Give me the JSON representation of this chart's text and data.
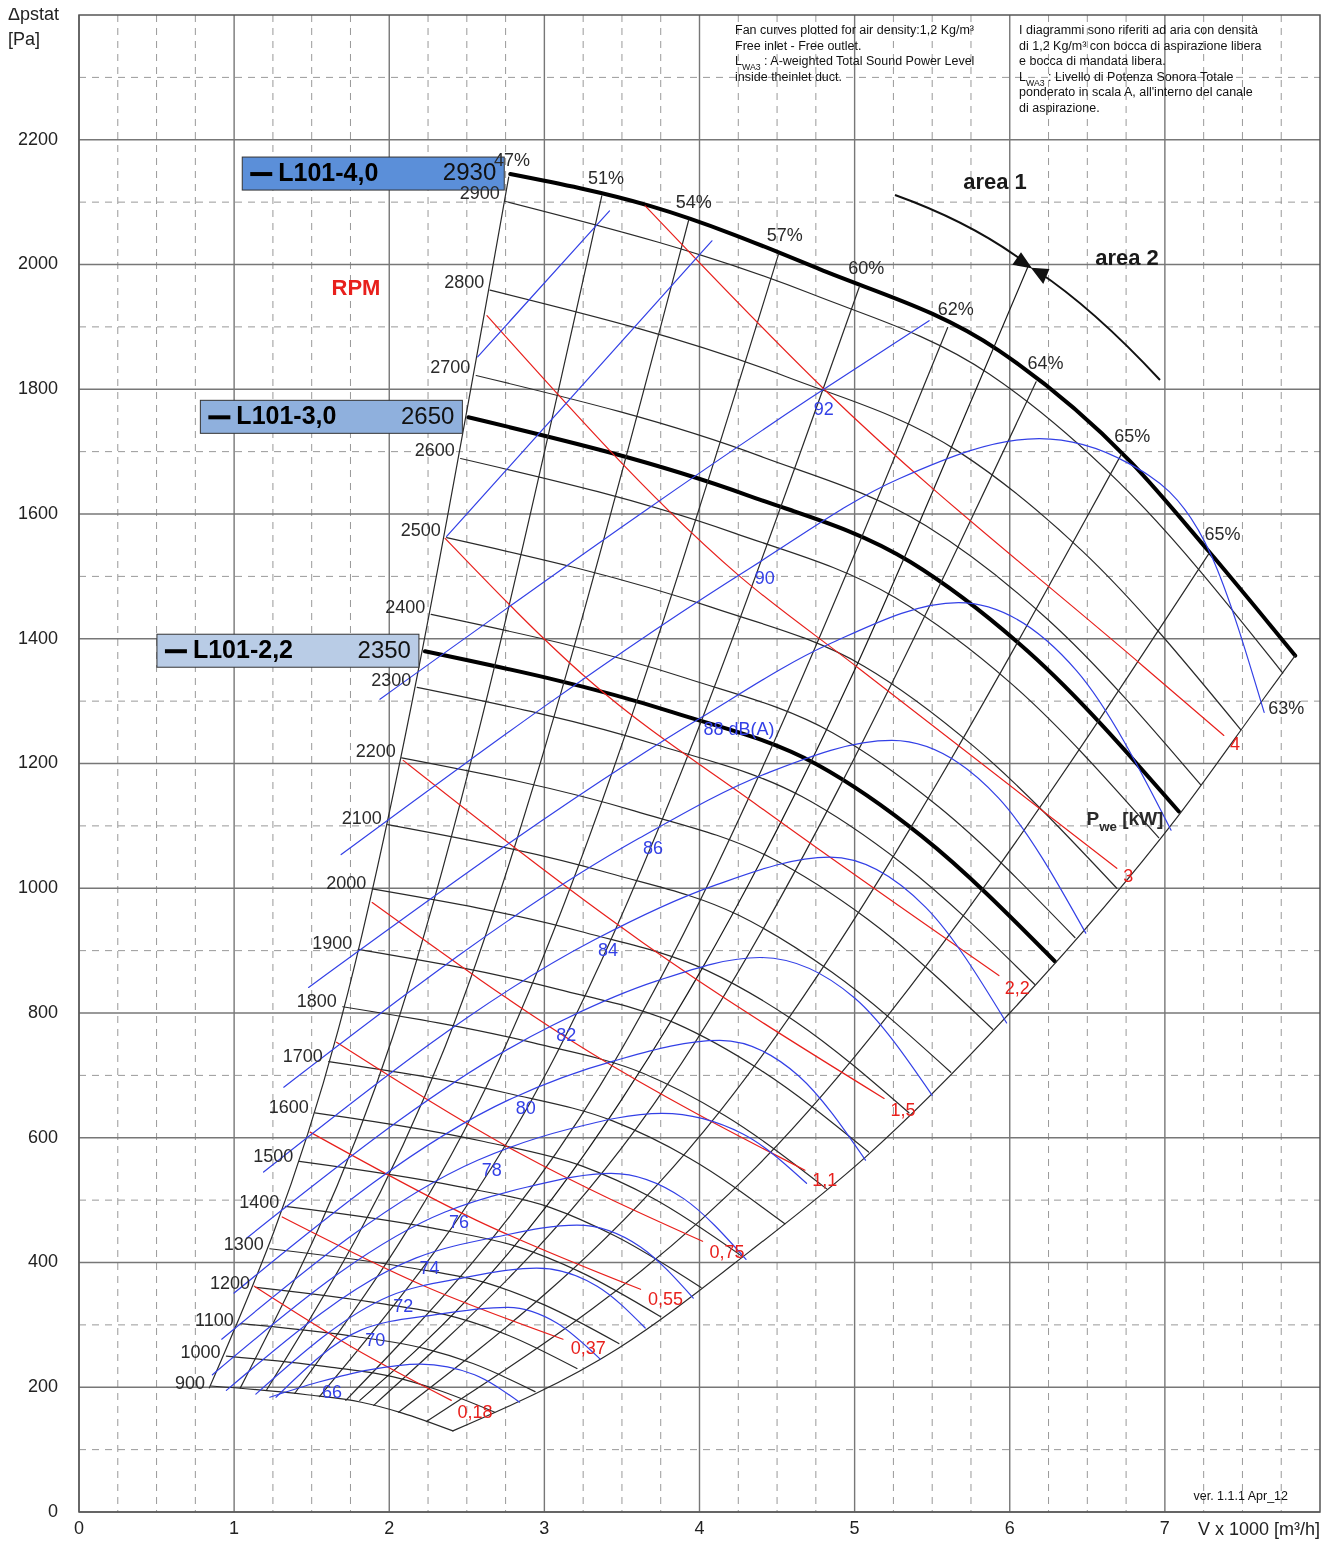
{
  "chart_data": {
    "type": "line",
    "ylabel": "Δpstat\n[Pa]",
    "xlabel": "V x 1000 [m³/h]",
    "xlim": [
      0,
      8
    ],
    "ylim": [
      0,
      2400
    ],
    "xticks": [
      0,
      {
        "value": 0.25,
        "label": null
      },
      {
        "value": 0.5,
        "label": null
      },
      {
        "value": 0.75,
        "label": null
      },
      1,
      {
        "value": 1.25,
        "label": null
      },
      {
        "value": 1.5,
        "label": null
      },
      {
        "value": 1.75,
        "label": null
      },
      2,
      {
        "value": 2.25,
        "label": null
      },
      {
        "value": 2.5,
        "label": null
      },
      {
        "value": 2.75,
        "label": null
      },
      3,
      {
        "value": 3.25,
        "label": null
      },
      {
        "value": 3.5,
        "label": null
      },
      {
        "value": 3.75,
        "label": null
      },
      4,
      {
        "value": 4.25,
        "label": null
      },
      {
        "value": 4.5,
        "label": null
      },
      {
        "value": 4.75,
        "label": null
      },
      5,
      {
        "value": 5.25,
        "label": null
      },
      {
        "value": 5.5,
        "label": null
      },
      {
        "value": 5.75,
        "label": null
      },
      6,
      {
        "value": 6.25,
        "label": null
      },
      {
        "value": 6.5,
        "label": null
      },
      {
        "value": 6.75,
        "label": null
      },
      7,
      {
        "value": 7.25,
        "label": null
      },
      {
        "value": 7.5,
        "label": null
      },
      {
        "value": 7.75,
        "label": null
      }
    ],
    "yticks": [
      0,
      {
        "value": 100,
        "label": null
      },
      200,
      {
        "value": 300,
        "label": null
      },
      400,
      {
        "value": 500,
        "label": null
      },
      600,
      {
        "value": 700,
        "label": null
      },
      800,
      {
        "value": 900,
        "label": null
      },
      1000,
      {
        "value": 1100,
        "label": null
      },
      1200,
      {
        "value": 1300,
        "label": null
      },
      1400,
      {
        "value": 1500,
        "label": null
      },
      1600,
      {
        "value": 1700,
        "label": null
      },
      1800,
      {
        "value": 1900,
        "label": null
      },
      2000,
      {
        "value": 2100,
        "label": null
      },
      2200,
      {
        "value": 2300,
        "label": null
      }
    ],
    "grid": true,
    "marker": "none",
    "line_style": "solid",
    "legend": "left",
    "series": [
      {
        "color": "#2a2a2a",
        "x": [
          2.75,
          4.72,
          5.87,
          6.7,
          7.76
        ],
        "values": [
          2101,
          1953,
          1824,
          1652,
          1345
        ]
      },
      {
        "color": "#2a2a2a",
        "x": [
          2.65,
          4.56,
          5.67,
          6.47,
          7.49
        ],
        "values": [
          1959,
          1820,
          1700,
          1540,
          1254
        ]
      },
      {
        "color": "#2a2a2a",
        "x": [
          2.56,
          4.4,
          5.46,
          6.24,
          7.23
        ],
        "values": [
          1822,
          1692,
          1581,
          1432,
          1166
        ]
      },
      {
        "color": "#2a2a2a",
        "x": [
          2.46,
          4.23,
          5.26,
          6.01,
          6.96
        ],
        "values": [
          1689,
          1569,
          1466,
          1328,
          1081
        ]
      },
      {
        "color": "#2a2a2a",
        "x": [
          2.37,
          4.07,
          5.06,
          5.77,
          6.69
        ],
        "values": [
          1562,
          1451,
          1356,
          1227,
          1000
        ]
      },
      {
        "color": "#2a2a2a",
        "x": [
          2.27,
          3.91,
          4.86,
          5.54,
          6.42
        ],
        "values": [
          1439,
          1337,
          1249,
          1131,
          921
        ]
      },
      {
        "color": "#2a2a2a",
        "x": [
          2.18,
          3.75,
          4.66,
          5.31,
          6.16
        ],
        "values": [
          1322,
          1228,
          1147,
          1039,
          846
        ]
      },
      {
        "color": "#2a2a2a",
        "x": [
          2.08,
          3.58,
          4.45,
          5.08,
          5.89
        ],
        "values": [
          1209,
          1124,
          1050,
          951,
          774
        ]
      },
      {
        "color": "#2a2a2a",
        "x": [
          1.99,
          3.42,
          4.25,
          4.85,
          5.62
        ],
        "values": [
          1102,
          1024,
          957,
          866,
          705
        ]
      },
      {
        "color": "#2a2a2a",
        "x": [
          1.89,
          3.26,
          4.05,
          4.62,
          5.35
        ],
        "values": [
          999,
          929,
          868,
          786,
          640
        ]
      },
      {
        "color": "#2a2a2a",
        "x": [
          1.8,
          3.09,
          3.85,
          4.39,
          5.09
        ],
        "values": [
          902,
          838,
          783,
          709,
          577
        ]
      },
      {
        "color": "#2a2a2a",
        "x": [
          1.7,
          2.93,
          3.64,
          4.16,
          4.82
        ],
        "values": [
          810,
          752,
          703,
          636,
          518
        ]
      },
      {
        "color": "#2a2a2a",
        "x": [
          1.61,
          2.77,
          3.44,
          3.93,
          4.55
        ],
        "values": [
          722,
          671,
          627,
          568,
          462
        ]
      },
      {
        "color": "#2a2a2a",
        "x": [
          1.52,
          2.61,
          3.24,
          3.7,
          4.28
        ],
        "values": [
          640,
          594,
          555,
          503,
          409
        ]
      },
      {
        "color": "#2a2a2a",
        "x": [
          1.42,
          2.44,
          3.04,
          3.46,
          4.01
        ],
        "values": [
          562,
          522,
          488,
          442,
          360
        ]
      },
      {
        "color": "#2a2a2a",
        "x": [
          1.33,
          2.28,
          2.83,
          3.23,
          3.75
        ],
        "values": [
          490,
          455,
          425,
          385,
          313
        ]
      },
      {
        "color": "#2a2a2a",
        "x": [
          1.23,
          2.12,
          2.63,
          3.0,
          3.48
        ],
        "values": [
          422,
          392,
          367,
          332,
          270
        ]
      },
      {
        "color": "#2a2a2a",
        "x": [
          1.14,
          1.95,
          2.43,
          2.77,
          3.21
        ],
        "values": [
          360,
          334,
          312,
          283,
          230
        ]
      },
      {
        "color": "#2a2a2a",
        "x": [
          1.04,
          1.79,
          2.23,
          2.54,
          2.94
        ],
        "values": [
          302,
          281,
          262,
          238,
          193
        ]
      },
      {
        "color": "#2a2a2a",
        "x": [
          0.95,
          1.63,
          2.02,
          2.31,
          2.68
        ],
        "values": [
          250,
          232,
          217,
          196,
          160
        ]
      },
      {
        "color": "#2a2a2a",
        "x": [
          0.85,
          1.47,
          1.82,
          2.08,
          2.41
        ],
        "values": [
          202,
          188,
          176,
          159,
          130
        ]
      },
      {
        "name": "L101-4,0",
        "color": "#000000",
        "x": [
          2.78,
          3.68,
          4.77,
          5.93,
          6.77,
          7.28,
          7.84
        ],
        "values": [
          2145,
          2094,
          1993,
          1862,
          1686,
          1541,
          1373
        ]
      },
      {
        "name": "L101-3,0",
        "color": "#000000",
        "x": [
          2.51,
          4.31,
          5.36,
          6.12,
          7.09
        ],
        "values": [
          1755,
          1630,
          1523,
          1379,
          1123
        ]
      },
      {
        "name": "L101-2,2",
        "color": "#000000",
        "x": [
          2.23,
          3.83,
          4.76,
          5.43,
          6.29
        ],
        "values": [
          1380,
          1282,
          1198,
          1084,
          883
        ]
      },
      {
        "color": "#2a2a2a",
        "x": [
          0.84,
          1.67,
          2.77
        ],
        "values": [
          199,
          772,
          2140
        ]
      },
      {
        "color": "#2a2a2a",
        "x": [
          1.04,
          2.02,
          3.37
        ],
        "values": [
          199,
          760,
          2110
        ]
      },
      {
        "color": "#2a2a2a",
        "x": [
          1.21,
          2.36,
          3.93
        ],
        "values": [
          196,
          746,
          2071
        ]
      },
      {
        "color": "#2a2a2a",
        "x": [
          1.39,
          2.71,
          4.51
        ],
        "values": [
          190,
          726,
          2017
        ]
      },
      {
        "color": "#2a2a2a",
        "x": [
          1.55,
          3.02,
          5.03
        ],
        "values": [
          185,
          707,
          1964
        ]
      },
      {
        "color": "#2a2a2a",
        "x": [
          1.72,
          3.36,
          5.6
        ],
        "values": [
          179,
          684,
          1899
        ]
      },
      {
        "color": "#2a2a2a",
        "x": [
          1.9,
          3.7,
          6.17
        ],
        "values": [
          171,
          652,
          1812
        ]
      },
      {
        "color": "#2a2a2a",
        "x": [
          2.06,
          4.03,
          6.72
        ],
        "values": [
          160,
          611,
          1696
        ]
      },
      {
        "color": "#2a2a2a",
        "x": [
          2.24,
          4.37,
          7.29
        ],
        "values": [
          145,
          554,
          1539
        ]
      },
      {
        "color": "#2a2a2a",
        "x": [
          2.41,
          3.48,
          4.32,
          5.07,
          6.0,
          7.08,
          7.64,
          7.84
        ],
        "values": [
          130,
          263,
          417,
          569,
          800,
          1114,
          1305,
          1373
        ]
      },
      {
        "color": "#1a1a1a",
        "x": [
          1.81,
          2.5,
          3.0,
          3.5,
          4.0,
          4.5,
          5.0,
          5.5,
          6.12
        ],
        "values": [
          179,
          340,
          486,
          662,
          864,
          1094,
          1350,
          1634,
          1998
        ]
      },
      {
        "color": "#e8201c",
        "x": [
          3.65,
          4.82,
          6.86,
          7.38
        ],
        "values": [
          2094,
          1796,
          1356,
          1245
        ]
      },
      {
        "color": "#e8201c",
        "x": [
          2.63,
          4.26,
          5.03,
          6.69
        ],
        "values": [
          1918,
          1500,
          1352,
          1032
        ]
      },
      {
        "color": "#e8201c",
        "x": [
          2.36,
          3.29,
          4.39,
          5.93
        ],
        "values": [
          1561,
          1333,
          1130,
          860
        ]
      },
      {
        "color": "#e8201c",
        "x": [
          2.09,
          3.64,
          5.19
        ],
        "values": [
          1205,
          912,
          663
        ]
      },
      {
        "color": "#e8201c",
        "x": [
          1.89,
          3.28,
          4.68
        ],
        "values": [
          977,
          739,
          548
        ]
      },
      {
        "color": "#e8201c",
        "x": [
          1.66,
          2.84,
          4.02
        ],
        "values": [
          753,
          575,
          434
        ]
      },
      {
        "color": "#e8201c",
        "x": [
          1.49,
          2.56,
          3.62
        ],
        "values": [
          609,
          468,
          357
        ]
      },
      {
        "color": "#e8201c",
        "x": [
          1.31,
          2.21,
          3.12
        ],
        "values": [
          473,
          364,
          277
        ]
      },
      {
        "color": "#e8201c",
        "x": [
          1.13,
          1.77,
          2.4
        ],
        "values": [
          362,
          263,
          179
        ]
      },
      {
        "color": "#3340e6",
        "x": [
          1.94,
          4.71,
          5.48
        ],
        "values": [
          1303,
          1785,
          1910
        ]
      },
      {
        "color": "#3340e6",
        "x": [
          1.69,
          4.33,
          5.29,
          6.19,
          6.76,
          7.3,
          7.64
        ],
        "values": [
          1054,
          1514,
          1657,
          1721,
          1682,
          1533,
          1282
        ]
      },
      {
        "color": "#3340e6",
        "x": [
          1.48,
          4.0,
          4.84,
          5.67,
          6.43,
          7.04
        ],
        "values": [
          841,
          1272,
          1392,
          1458,
          1349,
          1093
        ]
      },
      {
        "color": "#3340e6",
        "x": [
          1.32,
          3.61,
          4.42,
          5.24,
          5.93,
          6.49
        ],
        "values": [
          681,
          1080,
          1183,
          1237,
          1144,
          928
        ]
      },
      {
        "color": "#3340e6",
        "x": [
          1.19,
          3.32,
          4.08,
          4.84,
          5.46,
          5.98
        ],
        "values": [
          545,
          917,
          1003,
          1050,
          969,
          784
        ]
      },
      {
        "color": "#3340e6",
        "x": [
          1.08,
          3.05,
          3.72,
          4.39,
          5.0,
          5.5
        ],
        "values": [
          439,
          780,
          851,
          889,
          824,
          668
        ]
      },
      {
        "color": "#3340e6",
        "x": [
          1.0,
          2.79,
          3.46,
          4.13,
          4.64,
          5.07
        ],
        "values": [
          351,
          663,
          724,
          756,
          699,
          564
        ]
      },
      {
        "color": "#3340e6",
        "x": [
          0.92,
          2.57,
          3.16,
          3.76,
          4.28,
          4.69
        ],
        "values": [
          277,
          564,
          614,
          639,
          606,
          527
        ]
      },
      {
        "color": "#3340e6",
        "x": [
          0.86,
          2.36,
          2.89,
          3.43,
          3.9,
          4.3
        ],
        "values": [
          220,
          481,
          521,
          543,
          502,
          405
        ]
      },
      {
        "color": "#3340e6",
        "x": [
          0.95,
          2.17,
          2.69,
          3.21,
          3.62,
          3.96
        ],
        "values": [
          195,
          407,
          441,
          460,
          425,
          343
        ]
      },
      {
        "color": "#3340e6",
        "x": [
          1.14,
          2.0,
          2.47,
          2.95,
          3.34,
          3.65
        ],
        "values": [
          189,
          346,
          375,
          391,
          362,
          295
        ]
      },
      {
        "color": "#3340e6",
        "x": [
          1.27,
          1.82,
          2.29,
          2.76,
          3.08,
          3.36
        ],
        "values": [
          184,
          292,
          316,
          328,
          303,
          245
        ]
      },
      {
        "color": "#3340e6",
        "x": [
          1.23,
          1.54,
          1.87,
          2.2,
          2.55,
          2.84
        ],
        "values": [
          184,
          208,
          228,
          237,
          220,
          176
        ]
      },
      {
        "color": "#3340e6",
        "x": [
          2.57,
          3.42
        ],
        "values": [
          1852,
          2086
        ]
      },
      {
        "color": "#3340e6",
        "x": [
          2.37,
          4.08
        ],
        "values": [
          1564,
          2038
        ]
      }
    ],
    "annotations": [
      "Fan curves plotted for air density:1,2 Kg/m³\nFree inlet - Free outlet.\nL$_{WA3}$ : A-weighted Total Sound Power Level\ninside theinlet duct.",
      "I diagrammi sono riferiti ad aria con densità\ndi 1,2 Kg/m³ con bocca di aspirazione libera\ne bocca di mandata libera.\nL$_{WA3}$ : Livello di Potenza Sonora Totale\nponderato in scala A, all'interno del canale\ndi aspirazione.",
      "ver. 1.1.1 Apr_12",
      "2930",
      "2650",
      "2350",
      "RPM",
      "area 1",
      "area 2",
      "P$_{we}$ [kW]",
      {
        "text": "2900",
        "x": 2.75,
        "y": 2101
      },
      {
        "text": "2800",
        "x": 2.65,
        "y": 1959
      },
      {
        "text": "2700",
        "x": 2.56,
        "y": 1822
      },
      {
        "text": "2600",
        "x": 2.46,
        "y": 1689
      },
      {
        "text": "2500",
        "x": 2.37,
        "y": 1562
      },
      {
        "text": "2400",
        "x": 2.27,
        "y": 1439
      },
      {
        "text": "2300",
        "x": 2.18,
        "y": 1322
      },
      {
        "text": "2200",
        "x": 2.08,
        "y": 1209
      },
      {
        "text": "2100",
        "x": 1.99,
        "y": 1102
      },
      {
        "text": "2000",
        "x": 1.89,
        "y": 999
      },
      {
        "text": "1900",
        "x": 1.8,
        "y": 902
      },
      {
        "text": "1800",
        "x": 1.7,
        "y": 810
      },
      {
        "text": "1700",
        "x": 1.61,
        "y": 722
      },
      {
        "text": "1600",
        "x": 1.52,
        "y": 640
      },
      {
        "text": "1500",
        "x": 1.42,
        "y": 562
      },
      {
        "text": "1400",
        "x": 1.33,
        "y": 490
      },
      {
        "text": "1300",
        "x": 1.23,
        "y": 422
      },
      {
        "text": "1200",
        "x": 1.14,
        "y": 360
      },
      {
        "text": "1100",
        "x": 1.04,
        "y": 302
      },
      {
        "text": "1000",
        "x": 0.95,
        "y": 250
      },
      {
        "text": "900",
        "x": 0.85,
        "y": 202
      },
      {
        "text": "47%",
        "x": 2.77,
        "y": 2140
      },
      {
        "text": "51%",
        "x": 3.37,
        "y": 2110
      },
      {
        "text": "54%",
        "x": 3.93,
        "y": 2071
      },
      {
        "text": "57%",
        "x": 4.51,
        "y": 2017
      },
      {
        "text": "60%",
        "x": 5.03,
        "y": 1964
      },
      {
        "text": "62%",
        "x": 5.6,
        "y": 1899
      },
      {
        "text": "64%",
        "x": 6.17,
        "y": 1812
      },
      {
        "text": "65%",
        "x": 6.72,
        "y": 1696
      },
      {
        "text": "65%",
        "x": 7.29,
        "y": 1539
      },
      {
        "text": "63%",
        "x": 7.64,
        "y": 1305
      },
      {
        "text": "4",
        "x": 7.38,
        "y": 1245
      },
      {
        "text": "3",
        "x": 6.69,
        "y": 1032
      },
      {
        "text": "2,2",
        "x": 5.93,
        "y": 860
      },
      {
        "text": "1,5",
        "x": 5.19,
        "y": 663
      },
      {
        "text": "1,1",
        "x": 4.68,
        "y": 548
      },
      {
        "text": "0,75",
        "x": 4.02,
        "y": 434
      },
      {
        "text": "0,55",
        "x": 3.62,
        "y": 357
      },
      {
        "text": "0,37",
        "x": 3.12,
        "y": 277
      },
      {
        "text": "0,18",
        "x": 2.4,
        "y": 179
      },
      {
        "text": "92",
        "x": 4.71,
        "y": 1785
      },
      {
        "text": "90",
        "x": 4.33,
        "y": 1514
      },
      {
        "text": "88 dB(A)",
        "x": 4.0,
        "y": 1272
      },
      {
        "text": "86",
        "x": 3.61,
        "y": 1080
      },
      {
        "text": "84",
        "x": 3.32,
        "y": 917
      },
      {
        "text": "82",
        "x": 3.05,
        "y": 780
      },
      {
        "text": "80",
        "x": 2.79,
        "y": 663
      },
      {
        "text": "78",
        "x": 2.57,
        "y": 564
      },
      {
        "text": "76",
        "x": 2.36,
        "y": 481
      },
      {
        "text": "74",
        "x": 2.17,
        "y": 407
      },
      {
        "text": "72",
        "x": 2.0,
        "y": 346
      },
      {
        "text": "70",
        "x": 1.82,
        "y": 292
      },
      {
        "text": "66",
        "x": 1.54,
        "y": 208
      }
    ]
  }
}
